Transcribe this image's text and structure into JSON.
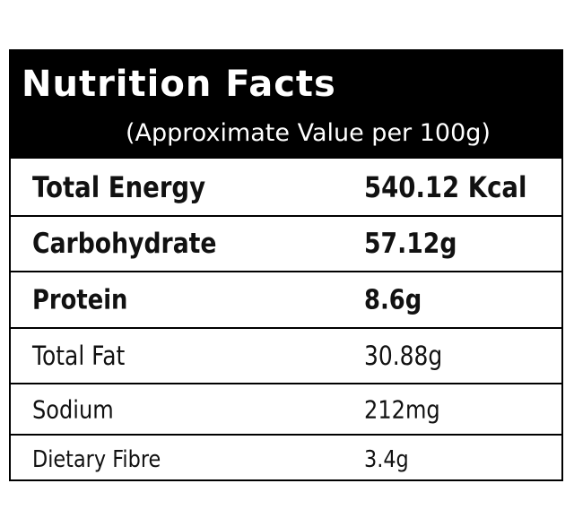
{
  "header": {
    "title": "Nutrition Facts",
    "subtitle": "(Approximate Value per 100g)"
  },
  "table": {
    "rows": [
      [
        "Total Energy",
        "540.12 Kcal"
      ],
      [
        "Carbohydrate",
        "57.12g"
      ],
      [
        "Protein",
        "8.6g"
      ],
      [
        "Total Fat",
        "30.88g"
      ],
      [
        "Sodium",
        "212mg"
      ],
      [
        "Dietary Fibre",
        "3.4g"
      ]
    ]
  }
}
